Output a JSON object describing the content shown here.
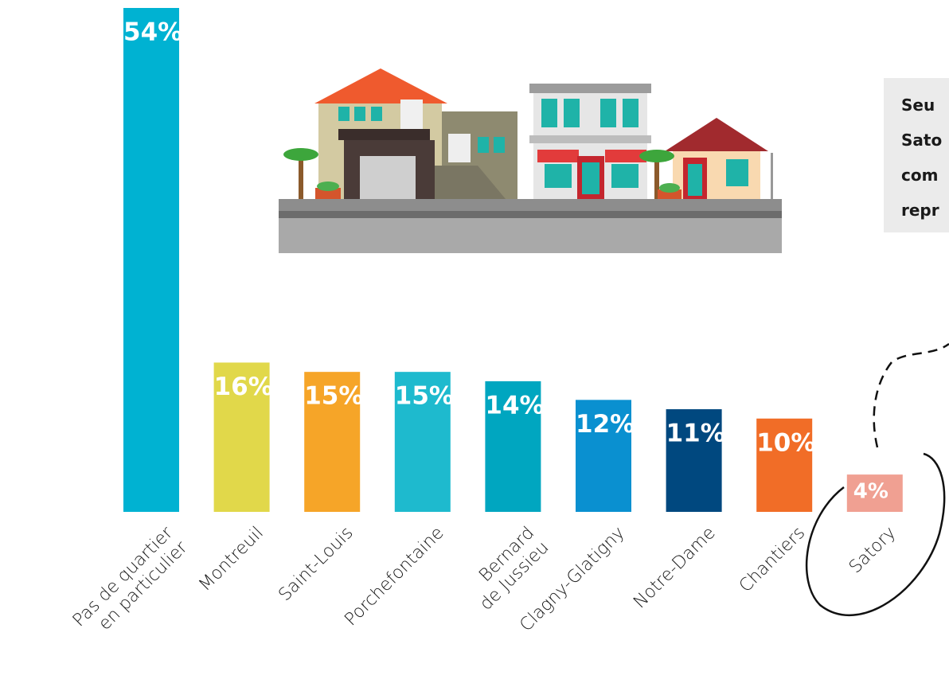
{
  "chart_data": {
    "type": "bar",
    "categories": [
      "Pas de quartier\nen particulier",
      "Montreuil",
      "Saint-Louis",
      "Porchefontaine",
      "Bernard\nde Jussieu",
      "Clagny-Glatigny",
      "Notre-Dame",
      "Chantiers",
      "Satory"
    ],
    "values": [
      54,
      16,
      15,
      15,
      14,
      12,
      11,
      10,
      4
    ],
    "value_labels": [
      "54%",
      "16%",
      "15%",
      "15%",
      "14%",
      "12%",
      "11%",
      "10%",
      "4%"
    ],
    "colors": [
      "#00b2d2",
      "#e1d84a",
      "#f6a528",
      "#1ebace",
      "#00a6c0",
      "#0a90d0",
      "#00487f",
      "#f16d27",
      "#f0a092"
    ]
  },
  "annotation": {
    "lines": [
      "Seu",
      "Sato",
      "com",
      "repr"
    ]
  }
}
